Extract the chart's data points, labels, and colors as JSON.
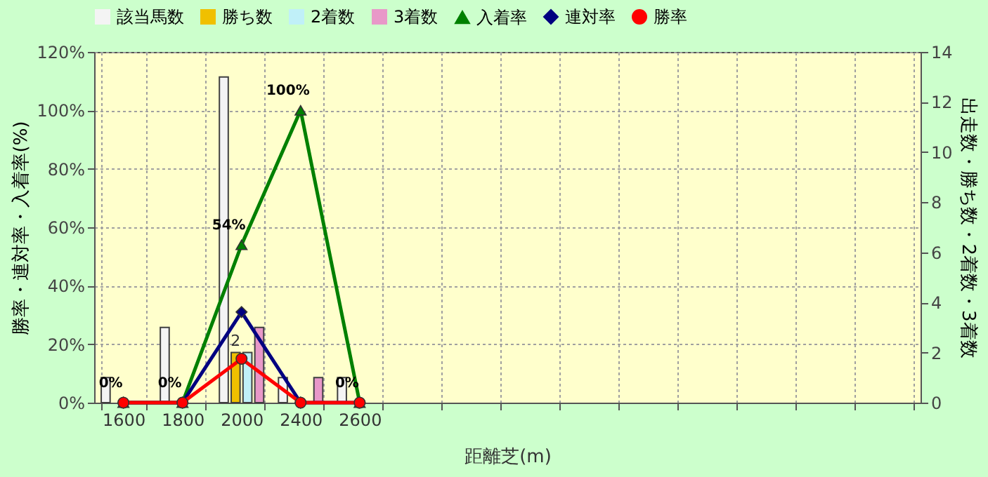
{
  "chart_data": {
    "type": "bar",
    "xlabel": "距離芝(m)",
    "ylabel": "勝率・連対率・入着率(%)",
    "y2label": "出走数・勝ち数・2着数・3着数",
    "categories": [
      "1600",
      "1800",
      "2000",
      "2400",
      "2600",
      null,
      null,
      null,
      null,
      null,
      null,
      null,
      null,
      null
    ],
    "ylim": [
      0,
      120
    ],
    "yticks": [
      {
        "value": 0,
        "label": "0%"
      },
      {
        "value": 20,
        "label": "20%"
      },
      {
        "value": 40,
        "label": "40%"
      },
      {
        "value": 60,
        "label": "60%"
      },
      {
        "value": 80,
        "label": "80%"
      },
      {
        "value": 100,
        "label": "100%"
      },
      {
        "value": 120,
        "label": "120%"
      }
    ],
    "y2lim": [
      0,
      14
    ],
    "y2ticks": [
      0,
      2,
      4,
      6,
      8,
      10,
      12,
      14
    ],
    "grid": true,
    "legend": "top",
    "series": [
      {
        "name": "該当馬数",
        "type": "bar",
        "axis": "y2",
        "color": "#f4f4f4",
        "values": [
          1,
          3,
          13,
          1,
          1,
          null,
          null,
          null,
          null,
          null,
          null,
          null,
          null,
          null
        ]
      },
      {
        "name": "勝ち数",
        "type": "bar",
        "axis": "y2",
        "color": "#f0c000",
        "values": [
          0,
          0,
          2,
          0,
          0,
          null,
          null,
          null,
          null,
          null,
          null,
          null,
          null,
          null
        ],
        "value_labels": [
          null,
          null,
          "2",
          null,
          null,
          null,
          null,
          null,
          null,
          null,
          null,
          null,
          null,
          null
        ]
      },
      {
        "name": "2着数",
        "type": "bar",
        "axis": "y2",
        "color": "#c0f0f8",
        "values": [
          0,
          0,
          2,
          0,
          0,
          null,
          null,
          null,
          null,
          null,
          null,
          null,
          null,
          null
        ]
      },
      {
        "name": "3着数",
        "type": "bar",
        "axis": "y2",
        "color": "#e898c8",
        "values": [
          0,
          0,
          3,
          1,
          0,
          null,
          null,
          null,
          null,
          null,
          null,
          null,
          null,
          null
        ]
      },
      {
        "name": "入着率",
        "type": "line",
        "color": "#008000",
        "marker": "triangle",
        "values": [
          0,
          0,
          54,
          100,
          0,
          null,
          null,
          null,
          null,
          null,
          null,
          null,
          null,
          null
        ],
        "value_labels": [
          "0%",
          "0%",
          "54%",
          "100%",
          "0%",
          null,
          null,
          null,
          null,
          null,
          null,
          null,
          null,
          null
        ]
      },
      {
        "name": "連対率",
        "type": "line",
        "color": "#000080",
        "marker": "diamond",
        "values": [
          0,
          0,
          31,
          0,
          0,
          null,
          null,
          null,
          null,
          null,
          null,
          null,
          null,
          null
        ]
      },
      {
        "name": "勝率",
        "type": "line",
        "color": "#ff0000",
        "marker": "circle",
        "values": [
          0,
          0,
          15,
          0,
          0,
          null,
          null,
          null,
          null,
          null,
          null,
          null,
          null,
          null
        ]
      }
    ]
  }
}
